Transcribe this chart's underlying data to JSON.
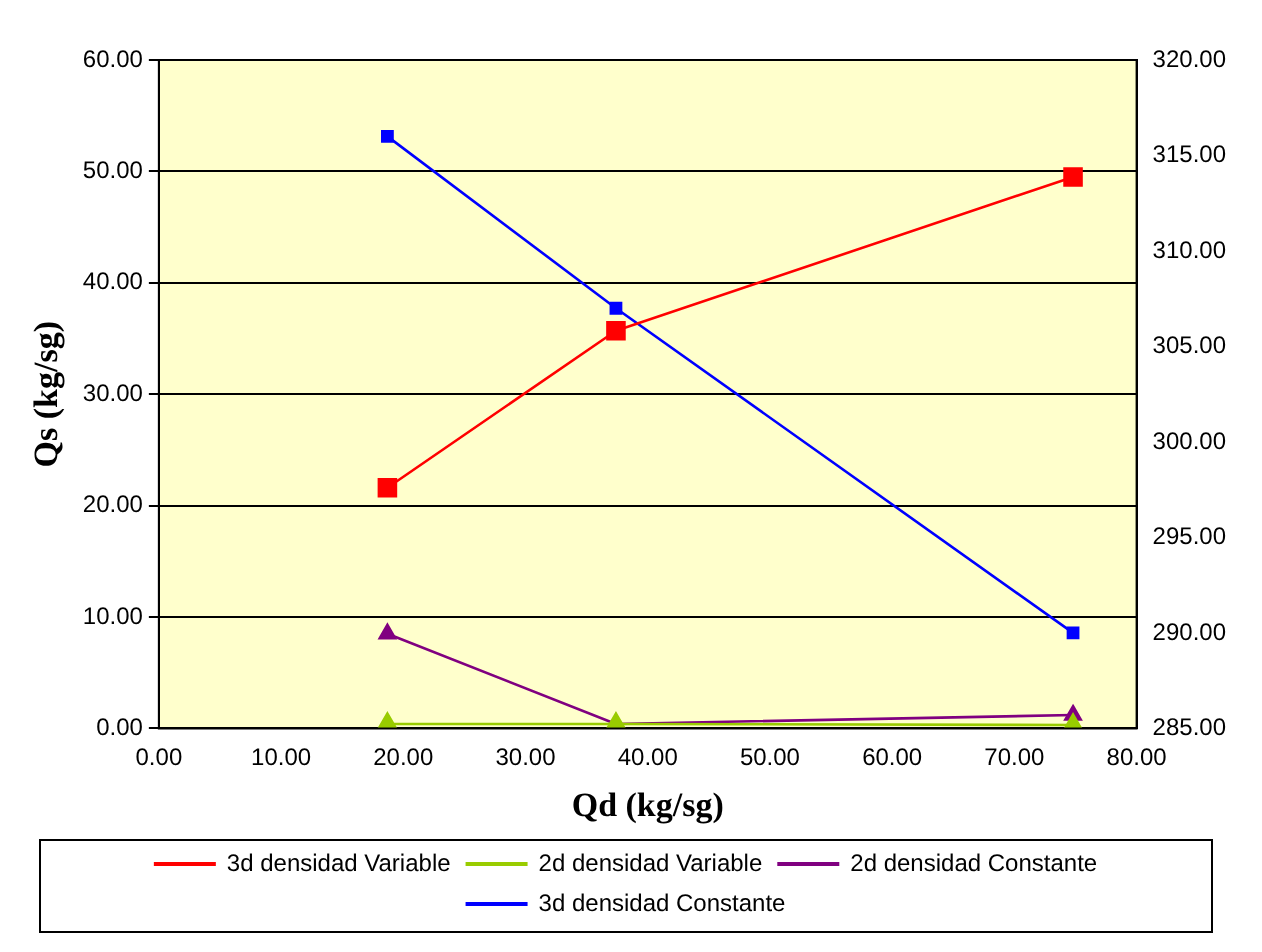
{
  "chart_data": {
    "type": "line",
    "xlabel": "Qd (kg/sg)",
    "ylabel": "Qs (kg/sg)",
    "x": [
      18.7,
      37.4,
      74.8
    ],
    "xlim": [
      0,
      80
    ],
    "xticks": [
      {
        "value": 0,
        "label": "0.00"
      },
      {
        "value": 10,
        "label": "10.00"
      },
      {
        "value": 20,
        "label": "20.00"
      },
      {
        "value": 30,
        "label": "30.00"
      },
      {
        "value": 40,
        "label": "40.00"
      },
      {
        "value": 50,
        "label": "50.00"
      },
      {
        "value": 60,
        "label": "60.00"
      },
      {
        "value": 70,
        "label": "70.00"
      },
      {
        "value": 80,
        "label": "80.00"
      }
    ],
    "ylim": [
      0,
      60
    ],
    "yticks": [
      {
        "value": 0,
        "label": "0.00"
      },
      {
        "value": 10,
        "label": "10.00"
      },
      {
        "value": 20,
        "label": "20.00"
      },
      {
        "value": 30,
        "label": "30.00"
      },
      {
        "value": 40,
        "label": "40.00"
      },
      {
        "value": 50,
        "label": "50.00"
      },
      {
        "value": 60,
        "label": "60.00"
      }
    ],
    "y2lim": [
      285,
      320
    ],
    "y2ticks": [
      {
        "value": 285,
        "label": "285.00"
      },
      {
        "value": 290,
        "label": "290.00"
      },
      {
        "value": 295,
        "label": "295.00"
      },
      {
        "value": 300,
        "label": "300.00"
      },
      {
        "value": 305,
        "label": "305.00"
      },
      {
        "value": 310,
        "label": "310.00"
      },
      {
        "value": 315,
        "label": "315.00"
      },
      {
        "value": 320,
        "label": "320.00"
      }
    ],
    "grid": "y",
    "legend": "bottom",
    "series": [
      {
        "name": "3d densidad Variable",
        "color": "#ff0000",
        "marker": "square",
        "values": [
          21.6,
          35.7,
          49.5
        ]
      },
      {
        "name": "2d densidad Variable",
        "color": "#99cc00",
        "marker": "triangle",
        "values": [
          0.4,
          0.4,
          0.3
        ]
      },
      {
        "name": "2d densidad Constante",
        "color": "#800080",
        "marker": "triangle",
        "values": [
          8.5,
          0.4,
          1.2
        ]
      },
      {
        "name": "3d densidad Constante",
        "color": "#0000ff",
        "marker": "square",
        "axis": "y2",
        "values": [
          316,
          307,
          290
        ]
      }
    ]
  }
}
